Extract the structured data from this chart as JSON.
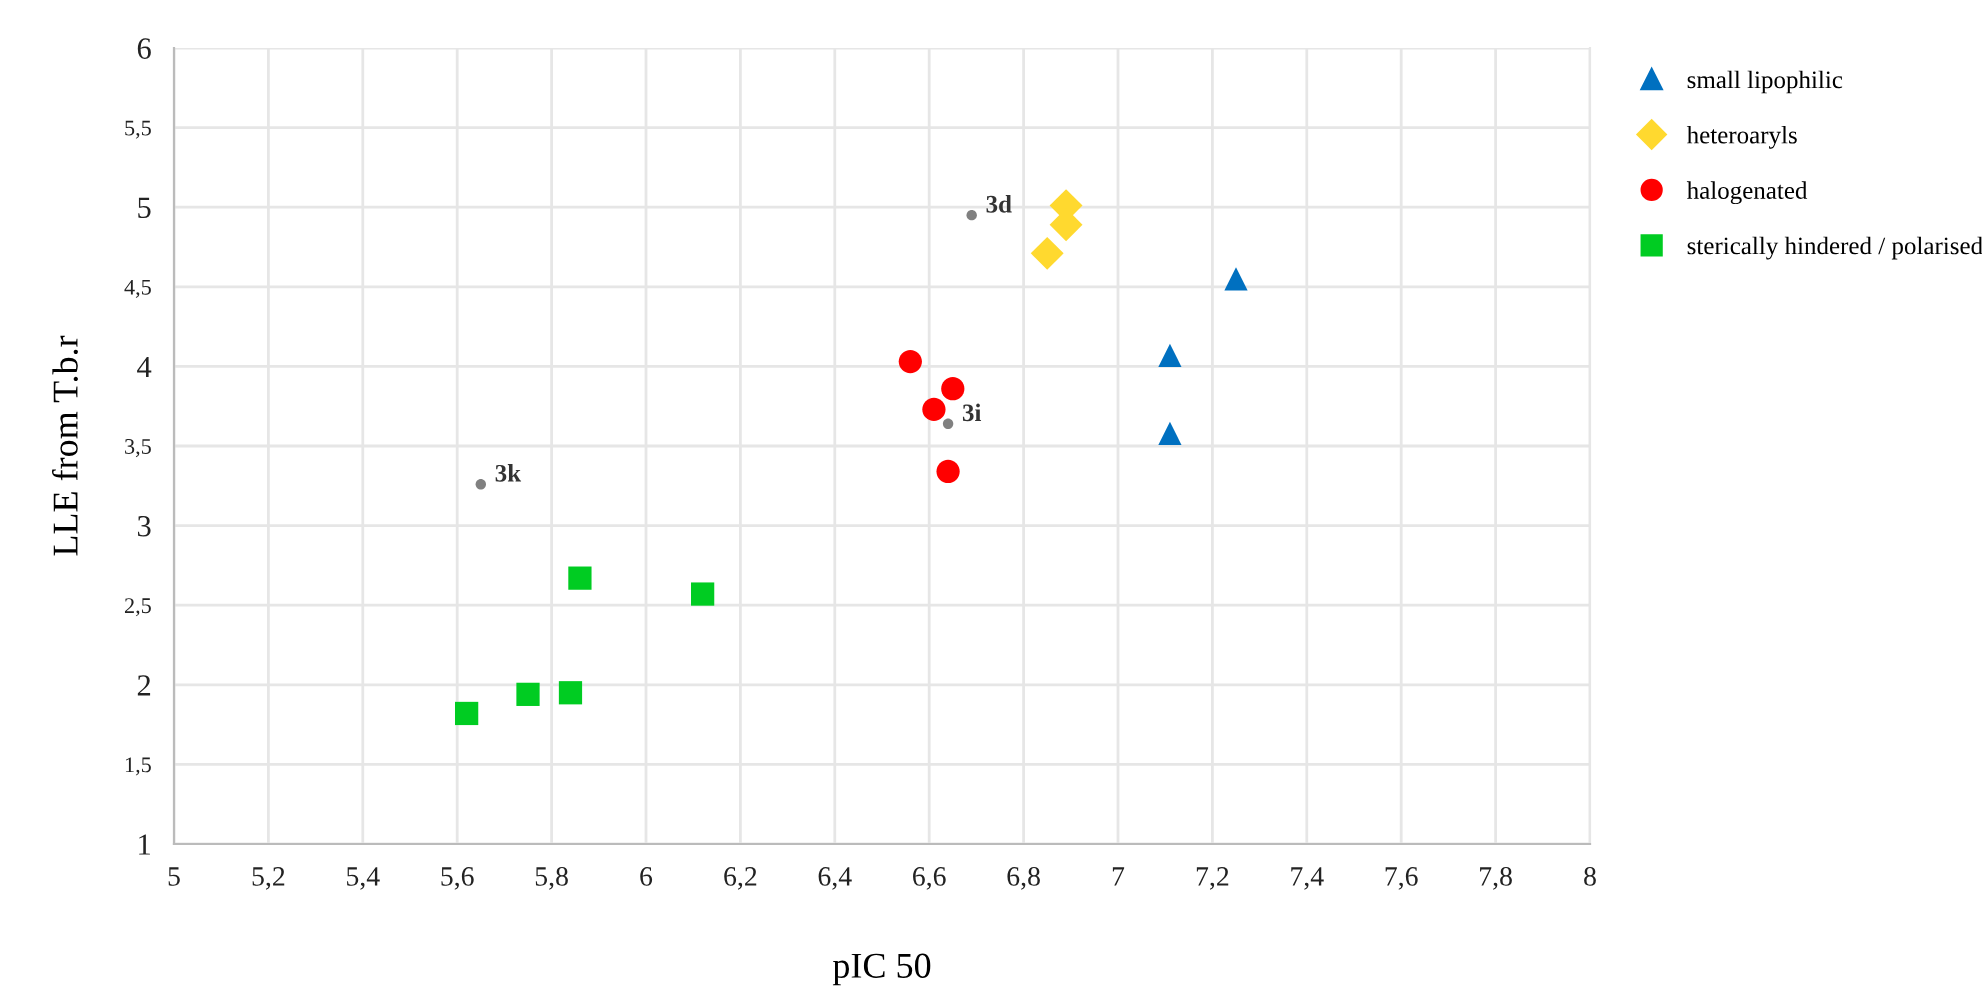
{
  "chart_data": {
    "type": "scatter",
    "xlabel": "pIC 50",
    "ylabel": "LLE from T.b.r",
    "xlim": [
      5,
      8
    ],
    "ylim": [
      1,
      6
    ],
    "xticks": [
      5,
      {
        "value": 5.2,
        "label": "5,2"
      },
      {
        "value": 5.4,
        "label": "5,4"
      },
      {
        "value": 5.6,
        "label": "5,6"
      },
      {
        "value": 5.8,
        "label": "5,8"
      },
      6,
      {
        "value": 6.2,
        "label": "6,2"
      },
      {
        "value": 6.4,
        "label": "6,4"
      },
      {
        "value": 6.6,
        "label": "6,6"
      },
      {
        "value": 6.8,
        "label": "6,8"
      },
      7,
      {
        "value": 7.2,
        "label": "7,2"
      },
      {
        "value": 7.4,
        "label": "7,4"
      },
      {
        "value": 7.6,
        "label": "7,6"
      },
      {
        "value": 7.8,
        "label": "7,8"
      },
      8
    ],
    "yticks": [
      1,
      {
        "value": 1.5,
        "label": "1,5"
      },
      2,
      {
        "value": 2.5,
        "label": "2,5"
      },
      3,
      {
        "value": 3.5,
        "label": "3,5"
      },
      4,
      {
        "value": 4.5,
        "label": "4,5"
      },
      5,
      {
        "value": 5.5,
        "label": "5,5"
      },
      6
    ],
    "grid": true,
    "legend": "top right",
    "series": [
      {
        "name": "small lipophilic",
        "color": "#0070c0",
        "marker": "triangle",
        "x": [
          7.25,
          7.11,
          7.11
        ],
        "values": [
          4.55,
          4.07,
          3.58
        ]
      },
      {
        "name": "heteroaryls",
        "color": "#ffd92f",
        "marker": "diamond",
        "x": [
          6.89,
          6.89,
          6.85
        ],
        "values": [
          5.01,
          4.89,
          4.71
        ]
      },
      {
        "name": "halogenated",
        "color": "#ff0000",
        "marker": "circle",
        "x": [
          6.56,
          6.65,
          6.61,
          6.64
        ],
        "values": [
          4.03,
          3.86,
          3.73,
          3.34
        ]
      },
      {
        "name": "sterically hindered / polarised",
        "color": "#00cc22",
        "marker": "square",
        "x": [
          5.86,
          6.12,
          5.75,
          5.84,
          5.62
        ],
        "values": [
          2.67,
          2.57,
          1.94,
          1.95,
          1.82
        ]
      },
      {
        "color": "#808080",
        "marker": "circle",
        "x": [
          6.69,
          6.64,
          5.65
        ],
        "values": [
          4.95,
          3.64,
          3.26
        ]
      }
    ],
    "annotations": [
      {
        "text": "3d",
        "x": 6.69,
        "y": 4.95
      },
      {
        "text": "3i",
        "x": 6.64,
        "y": 3.64
      },
      {
        "text": "3k",
        "x": 5.65,
        "y": 3.26
      }
    ]
  }
}
